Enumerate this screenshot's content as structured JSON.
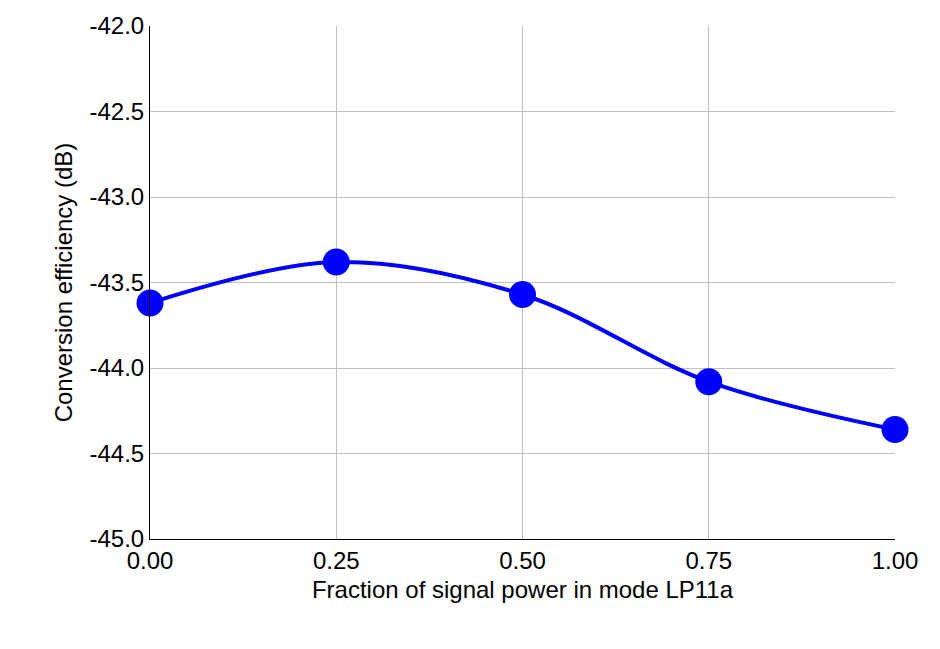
{
  "chart_data": {
    "type": "line",
    "x_label": "Fraction of signal power in mode LP11a",
    "y_label": "Conversion efficiency (dB)",
    "x": [
      0.0,
      0.25,
      0.5,
      0.75,
      1.0
    ],
    "values": [
      -43.62,
      -43.38,
      -43.57,
      -44.08,
      -44.36
    ],
    "color": "#0000ff",
    "marker": "circle",
    "line_style": "spline",
    "xlim": [
      0,
      1
    ],
    "xticks": [
      {
        "value": 0,
        "label": "0.00"
      },
      0.25,
      {
        "value": 0.5,
        "label": "0.50"
      },
      0.75,
      {
        "value": 1,
        "label": "1.00"
      }
    ],
    "ylim": [
      -45,
      -42
    ],
    "yticks": [
      {
        "value": -45,
        "label": "-45.0"
      },
      -44.5,
      {
        "value": -44,
        "label": "-44.0"
      },
      -43.5,
      {
        "value": -43,
        "label": "-43.0"
      },
      -42.5,
      {
        "value": -42,
        "label": "-42.0"
      }
    ],
    "grid": true
  }
}
